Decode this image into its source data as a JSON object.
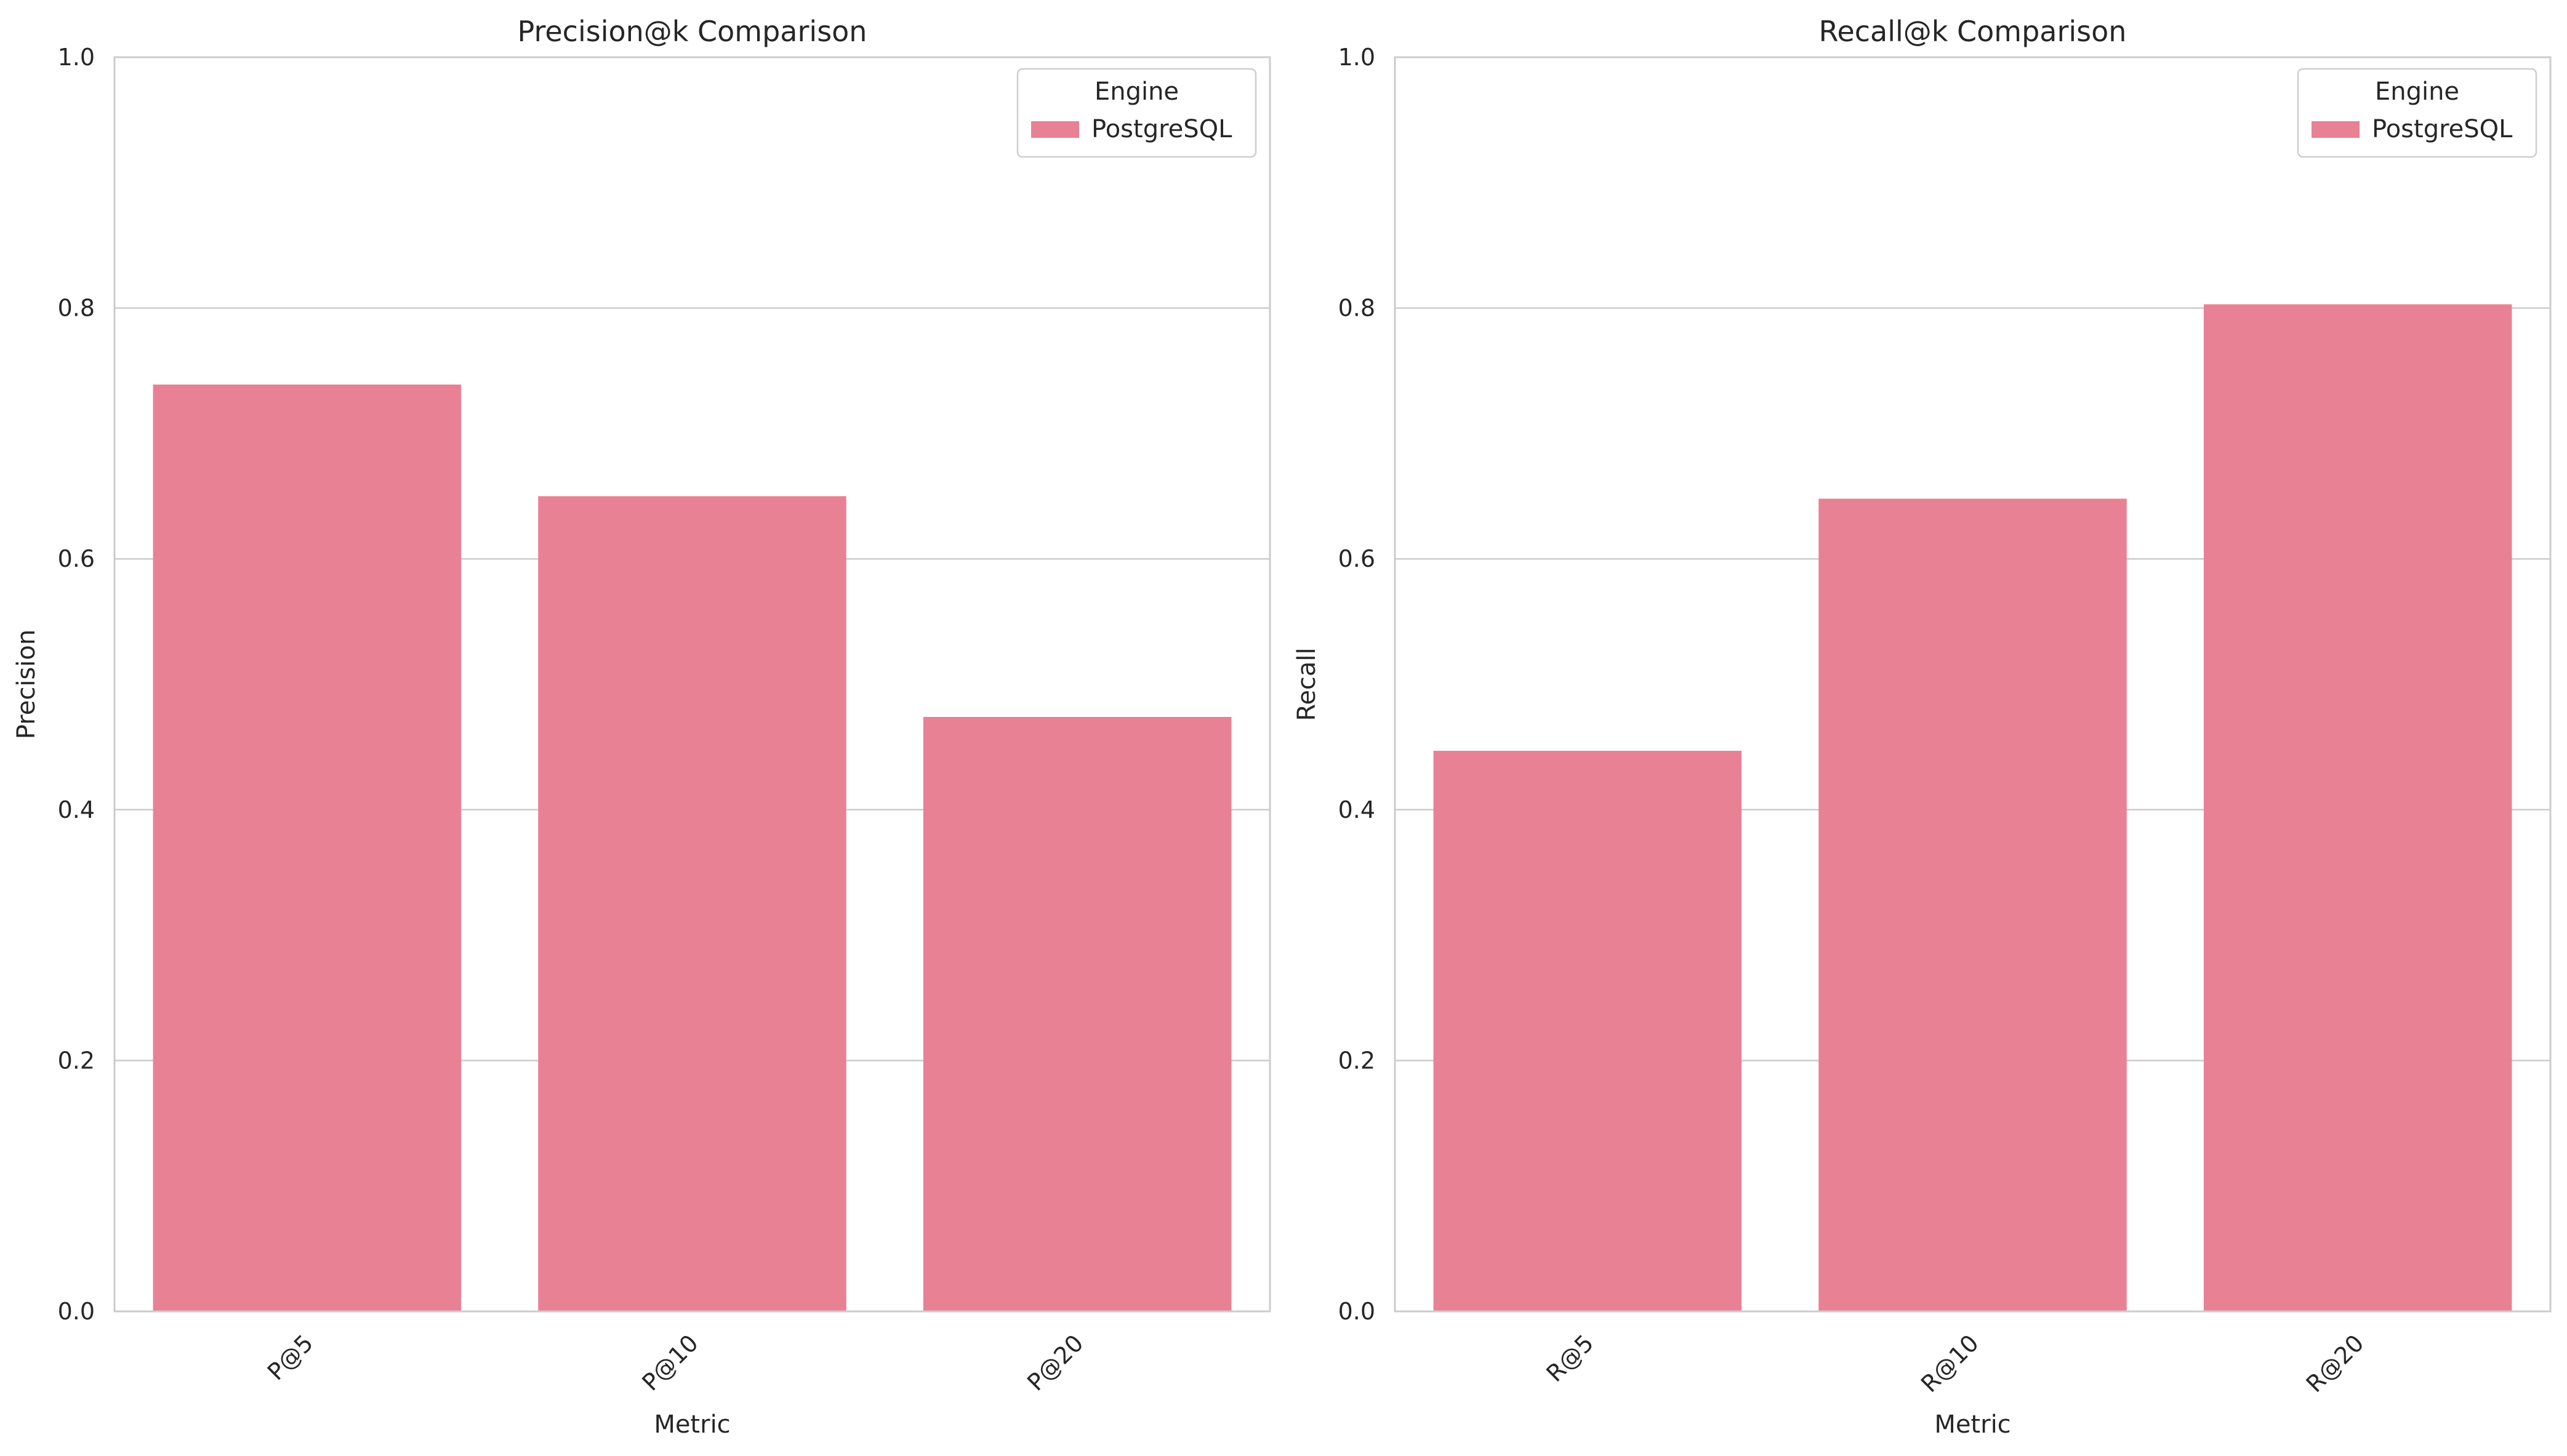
{
  "chart_data": [
    {
      "type": "bar",
      "title": "Precision@k Comparison",
      "xlabel": "Metric",
      "ylabel": "Precision",
      "categories": [
        "P@5",
        "P@10",
        "P@20"
      ],
      "series": [
        {
          "name": "PostgreSQL",
          "values": [
            0.739,
            0.65,
            0.474
          ]
        }
      ],
      "ylim": [
        0,
        1.0
      ],
      "yticks": [
        "0.0",
        "0.2",
        "0.4",
        "0.6",
        "0.8",
        "1.0"
      ],
      "grid": "horizontal",
      "legend": {
        "title": "Engine",
        "placement": "top-right"
      },
      "color": "#e88194"
    },
    {
      "type": "bar",
      "title": "Recall@k Comparison",
      "xlabel": "Metric",
      "ylabel": "Recall",
      "categories": [
        "R@5",
        "R@10",
        "R@20"
      ],
      "series": [
        {
          "name": "PostgreSQL",
          "values": [
            0.447,
            0.648,
            0.803
          ]
        }
      ],
      "ylim": [
        0,
        1.0
      ],
      "yticks": [
        "0.0",
        "0.2",
        "0.4",
        "0.6",
        "0.8",
        "1.0"
      ],
      "grid": "horizontal",
      "legend": {
        "title": "Engine",
        "placement": "top-right"
      },
      "color": "#e88194"
    }
  ]
}
